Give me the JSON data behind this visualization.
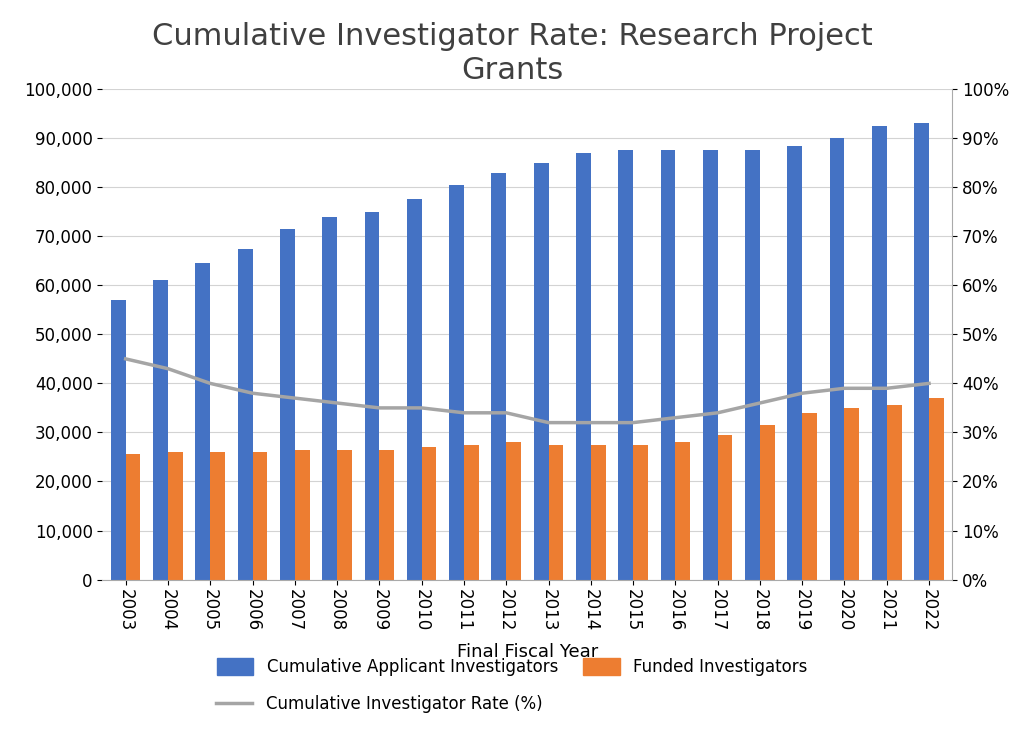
{
  "years": [
    2003,
    2004,
    2005,
    2006,
    2007,
    2008,
    2009,
    2010,
    2011,
    2012,
    2013,
    2014,
    2015,
    2016,
    2017,
    2018,
    2019,
    2020,
    2021,
    2022
  ],
  "applicants": [
    57000,
    61000,
    64500,
    67500,
    71500,
    74000,
    75000,
    77500,
    80500,
    83000,
    85000,
    87000,
    87500,
    87500,
    87500,
    87500,
    88500,
    90000,
    92500,
    93000
  ],
  "awardees": [
    25500,
    26000,
    26000,
    26000,
    26500,
    26500,
    26500,
    27000,
    27500,
    28000,
    27500,
    27500,
    27500,
    28000,
    29500,
    31500,
    34000,
    35000,
    35500,
    37000
  ],
  "cir": [
    45,
    43,
    40,
    38,
    37,
    36,
    35,
    35,
    34,
    34,
    32,
    32,
    32,
    33,
    34,
    36,
    38,
    39,
    39,
    40
  ],
  "blue_color": "#4472C4",
  "orange_color": "#ED7D31",
  "gray_color": "#A5A5A5",
  "title": "Cumulative Investigator Rate: Research Project\nGrants",
  "xlabel": "Final Fiscal Year",
  "ylim_left": [
    0,
    100000
  ],
  "ylim_right": [
    0,
    100
  ],
  "yticks_left": [
    0,
    10000,
    20000,
    30000,
    40000,
    50000,
    60000,
    70000,
    80000,
    90000,
    100000
  ],
  "yticks_right": [
    0,
    10,
    20,
    30,
    40,
    50,
    60,
    70,
    80,
    90,
    100
  ],
  "title_fontsize": 22,
  "axis_fontsize": 13,
  "tick_fontsize": 12,
  "legend_label_applicants": "Cumulative Applicant Investigators",
  "legend_label_awardees": "Funded Investigators",
  "legend_label_cir": "Cumulative Investigator Rate (%)"
}
